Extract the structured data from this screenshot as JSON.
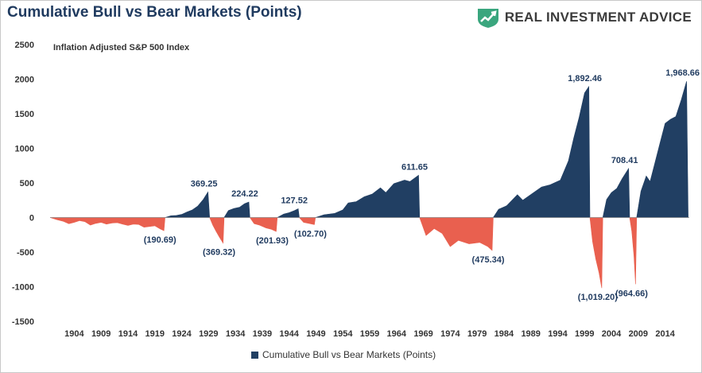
{
  "title": "Cumulative Bull vs Bear Markets (Points)",
  "logo": {
    "text": "REAL INVESTMENT ADVICE",
    "icon": "rising-chart-shield-icon"
  },
  "colors": {
    "bull": "#213f63",
    "bear": "#e9604f",
    "title": "#1f3a5f",
    "axis": "#333333",
    "grid": "#d9d9d9",
    "logo_icon": "#3aa67e"
  },
  "chart_data": {
    "type": "area",
    "title": "Cumulative Bull vs Bear Markets (Points)",
    "subtitle": "Inflation Adjusted S&P 500 Index",
    "xlabel": "",
    "ylabel": "",
    "xlim": [
      1900,
      2019
    ],
    "ylim": [
      -1500,
      2500
    ],
    "yticks": [
      2500,
      2000,
      1500,
      1000,
      500,
      0,
      -500,
      -1000,
      -1500
    ],
    "xticks": [
      1904,
      1909,
      1914,
      1919,
      1924,
      1929,
      1934,
      1939,
      1944,
      1949,
      1954,
      1959,
      1964,
      1969,
      1974,
      1979,
      1984,
      1989,
      1994,
      1999,
      2004,
      2009,
      2014
    ],
    "grid": false,
    "legend": "bottom",
    "series": [
      {
        "name": "Cumulative Bull vs Bear Markets (Points)",
        "segments": [
          {
            "kind": "bear",
            "start": 1900.0,
            "end": 1921.4,
            "peak": -190.69,
            "label": "(190.69)",
            "pts": [
              [
                1900.0,
                0
              ],
              [
                1901.2,
                -30
              ],
              [
                1902.5,
                -55
              ],
              [
                1903.5,
                -90
              ],
              [
                1904.5,
                -70
              ],
              [
                1905.5,
                -45
              ],
              [
                1906.5,
                -60
              ],
              [
                1907.5,
                -110
              ],
              [
                1908.5,
                -85
              ],
              [
                1909.5,
                -70
              ],
              [
                1910.5,
                -95
              ],
              [
                1911.5,
                -80
              ],
              [
                1912.5,
                -75
              ],
              [
                1913.5,
                -95
              ],
              [
                1914.5,
                -115
              ],
              [
                1915.5,
                -95
              ],
              [
                1916.5,
                -100
              ],
              [
                1917.5,
                -140
              ],
              [
                1918.5,
                -130
              ],
              [
                1919.5,
                -120
              ],
              [
                1920.5,
                -165
              ],
              [
                1921.2,
                -190.69
              ],
              [
                1921.4,
                0
              ]
            ]
          },
          {
            "kind": "bull",
            "start": 1921.4,
            "end": 1929.7,
            "peak": 369.25,
            "label": "369.25",
            "pts": [
              [
                1921.4,
                0
              ],
              [
                1922.5,
                25
              ],
              [
                1923.5,
                30
              ],
              [
                1924.5,
                45
              ],
              [
                1925.5,
                80
              ],
              [
                1926.5,
                110
              ],
              [
                1927.5,
                165
              ],
              [
                1928.5,
                260
              ],
              [
                1929.4,
                369.25
              ],
              [
                1929.7,
                0
              ]
            ]
          },
          {
            "kind": "bear",
            "start": 1929.7,
            "end": 1932.4,
            "peak": -369.32,
            "label": "(369.32)",
            "pts": [
              [
                1929.7,
                0
              ],
              [
                1930.3,
                -110
              ],
              [
                1930.9,
                -200
              ],
              [
                1931.5,
                -280
              ],
              [
                1932.2,
                -369.32
              ],
              [
                1932.4,
                0
              ]
            ]
          },
          {
            "kind": "bull",
            "start": 1932.4,
            "end": 1937.2,
            "peak": 224.22,
            "label": "224.22",
            "pts": [
              [
                1932.4,
                0
              ],
              [
                1933.2,
                100
              ],
              [
                1934.2,
                130
              ],
              [
                1935.3,
                150
              ],
              [
                1936.2,
                200
              ],
              [
                1937.0,
                224.22
              ],
              [
                1937.2,
                0
              ]
            ]
          },
          {
            "kind": "bear",
            "start": 1937.2,
            "end": 1942.3,
            "peak": -201.93,
            "label": "(201.93)",
            "pts": [
              [
                1937.2,
                0
              ],
              [
                1938.0,
                -90
              ],
              [
                1939.0,
                -110
              ],
              [
                1940.2,
                -150
              ],
              [
                1941.2,
                -170
              ],
              [
                1942.1,
                -201.93
              ],
              [
                1942.3,
                0
              ]
            ]
          },
          {
            "kind": "bull",
            "start": 1942.3,
            "end": 1946.4,
            "peak": 127.52,
            "label": "127.52",
            "pts": [
              [
                1942.3,
                0
              ],
              [
                1943.5,
                50
              ],
              [
                1944.5,
                70
              ],
              [
                1945.5,
                100
              ],
              [
                1946.2,
                127.52
              ],
              [
                1946.4,
                0
              ]
            ]
          },
          {
            "kind": "bear",
            "start": 1946.4,
            "end": 1949.4,
            "peak": -102.7,
            "label": "(102.70)",
            "pts": [
              [
                1946.4,
                0
              ],
              [
                1947.2,
                -70
              ],
              [
                1948.2,
                -85
              ],
              [
                1949.2,
                -102.7
              ],
              [
                1949.4,
                0
              ]
            ]
          },
          {
            "kind": "bull",
            "start": 1949.4,
            "end": 1968.8,
            "peak": 611.65,
            "label": "611.65",
            "pts": [
              [
                1949.4,
                0
              ],
              [
                1951.0,
                40
              ],
              [
                1953.0,
                60
              ],
              [
                1954.5,
                110
              ],
              [
                1955.5,
                210
              ],
              [
                1957.0,
                230
              ],
              [
                1958.5,
                300
              ],
              [
                1960.0,
                340
              ],
              [
                1961.5,
                430
              ],
              [
                1962.5,
                360
              ],
              [
                1964.0,
                490
              ],
              [
                1966.0,
                540
              ],
              [
                1967.0,
                520
              ],
              [
                1968.6,
                611.65
              ],
              [
                1968.8,
                0
              ]
            ]
          },
          {
            "kind": "bear",
            "start": 1968.8,
            "end": 1982.5,
            "peak": -475.34,
            "label": "(475.34)",
            "pts": [
              [
                1968.8,
                0
              ],
              [
                1970.0,
                -260
              ],
              [
                1971.5,
                -160
              ],
              [
                1973.0,
                -230
              ],
              [
                1974.5,
                -420
              ],
              [
                1976.0,
                -330
              ],
              [
                1978.0,
                -380
              ],
              [
                1980.0,
                -360
              ],
              [
                1981.5,
                -420
              ],
              [
                1982.3,
                -475.34
              ],
              [
                1982.5,
                0
              ]
            ]
          },
          {
            "kind": "bull",
            "start": 1982.5,
            "end": 2000.5,
            "peak": 1892.46,
            "label": "1,892.46",
            "pts": [
              [
                1982.5,
                0
              ],
              [
                1983.5,
                120
              ],
              [
                1985.0,
                170
              ],
              [
                1987.0,
                330
              ],
              [
                1988.0,
                250
              ],
              [
                1990.0,
                360
              ],
              [
                1991.5,
                440
              ],
              [
                1993.0,
                470
              ],
              [
                1995.0,
                540
              ],
              [
                1996.5,
                820
              ],
              [
                1997.5,
                1150
              ],
              [
                1998.5,
                1450
              ],
              [
                1999.5,
                1800
              ],
              [
                2000.3,
                1892.46
              ],
              [
                2000.5,
                0
              ]
            ]
          },
          {
            "kind": "bear",
            "start": 2000.5,
            "end": 2002.9,
            "peak": -1019.2,
            "label": "(1,019.20)",
            "pts": [
              [
                2000.5,
                0
              ],
              [
                2001.0,
                -350
              ],
              [
                2001.6,
                -600
              ],
              [
                2002.2,
                -800
              ],
              [
                2002.7,
                -1019.2
              ],
              [
                2002.9,
                0
              ]
            ]
          },
          {
            "kind": "bull",
            "start": 2002.9,
            "end": 2007.9,
            "peak": 708.41,
            "label": "708.41",
            "pts": [
              [
                2002.9,
                0
              ],
              [
                2003.6,
                260
              ],
              [
                2004.5,
                360
              ],
              [
                2005.5,
                420
              ],
              [
                2006.5,
                560
              ],
              [
                2007.7,
                708.41
              ],
              [
                2007.9,
                0
              ]
            ]
          },
          {
            "kind": "bear",
            "start": 2007.9,
            "end": 2009.2,
            "peak": -964.66,
            "label": "(964.66)",
            "pts": [
              [
                2007.9,
                0
              ],
              [
                2008.3,
                -200
              ],
              [
                2008.7,
                -550
              ],
              [
                2009.0,
                -964.66
              ],
              [
                2009.2,
                0
              ]
            ]
          },
          {
            "kind": "bull",
            "start": 2009.2,
            "end": 2018.8,
            "peak": 1968.66,
            "label": "1,968.66",
            "pts": [
              [
                2009.2,
                0
              ],
              [
                2010.0,
                380
              ],
              [
                2011.0,
                600
              ],
              [
                2011.7,
                520
              ],
              [
                2012.5,
                760
              ],
              [
                2013.5,
                1060
              ],
              [
                2014.5,
                1360
              ],
              [
                2015.5,
                1420
              ],
              [
                2016.5,
                1460
              ],
              [
                2017.5,
                1700
              ],
              [
                2018.5,
                1968.66
              ],
              [
                2018.8,
                0
              ]
            ]
          }
        ]
      }
    ]
  }
}
